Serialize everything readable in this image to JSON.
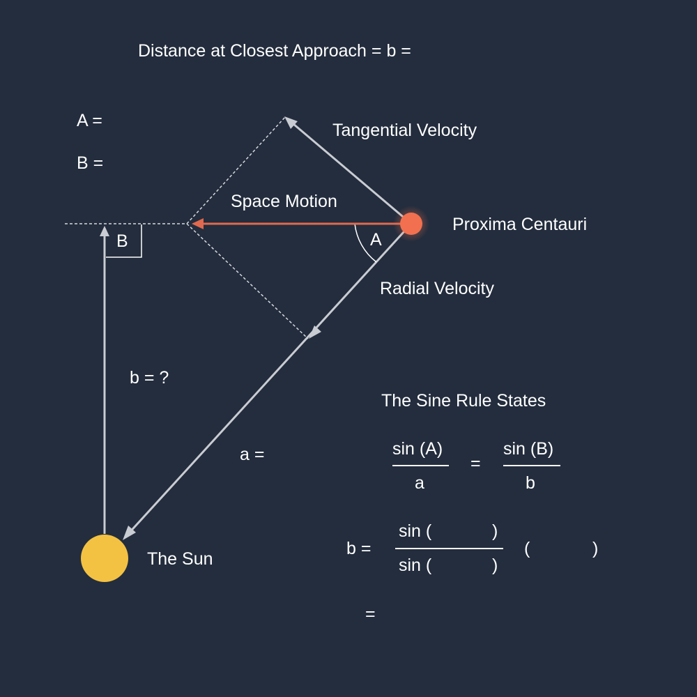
{
  "title": "Distance at Closest Approach = b =",
  "angle_a_label": "A =",
  "angle_b_label": "B =",
  "labels": {
    "tangential_velocity": "Tangential Velocity",
    "space_motion": "Space Motion",
    "proxima_centauri": "Proxima Centauri",
    "radial_velocity": "Radial Velocity",
    "angle_a": "A",
    "angle_b": "B",
    "b_unknown": "b = ?",
    "a_equals": "a =",
    "the_sun": "The Sun"
  },
  "sine_rule": {
    "heading": "The Sine Rule States",
    "left_num": "sin (A)",
    "left_den": "a",
    "equals": "=",
    "right_num": "sin (B)",
    "right_den": "b"
  },
  "solve": {
    "b_equals": "b =",
    "num_open": "sin (",
    "num_close": ")",
    "den_open": "sin (",
    "den_close": ")",
    "factor_open": "(",
    "factor_close": ")",
    "final_equals": "="
  },
  "colors": {
    "background": "#232d3d",
    "line": "#c9ccd2",
    "space_motion": "#e0694f",
    "star": "#f2704f",
    "sun": "#f4c242"
  }
}
